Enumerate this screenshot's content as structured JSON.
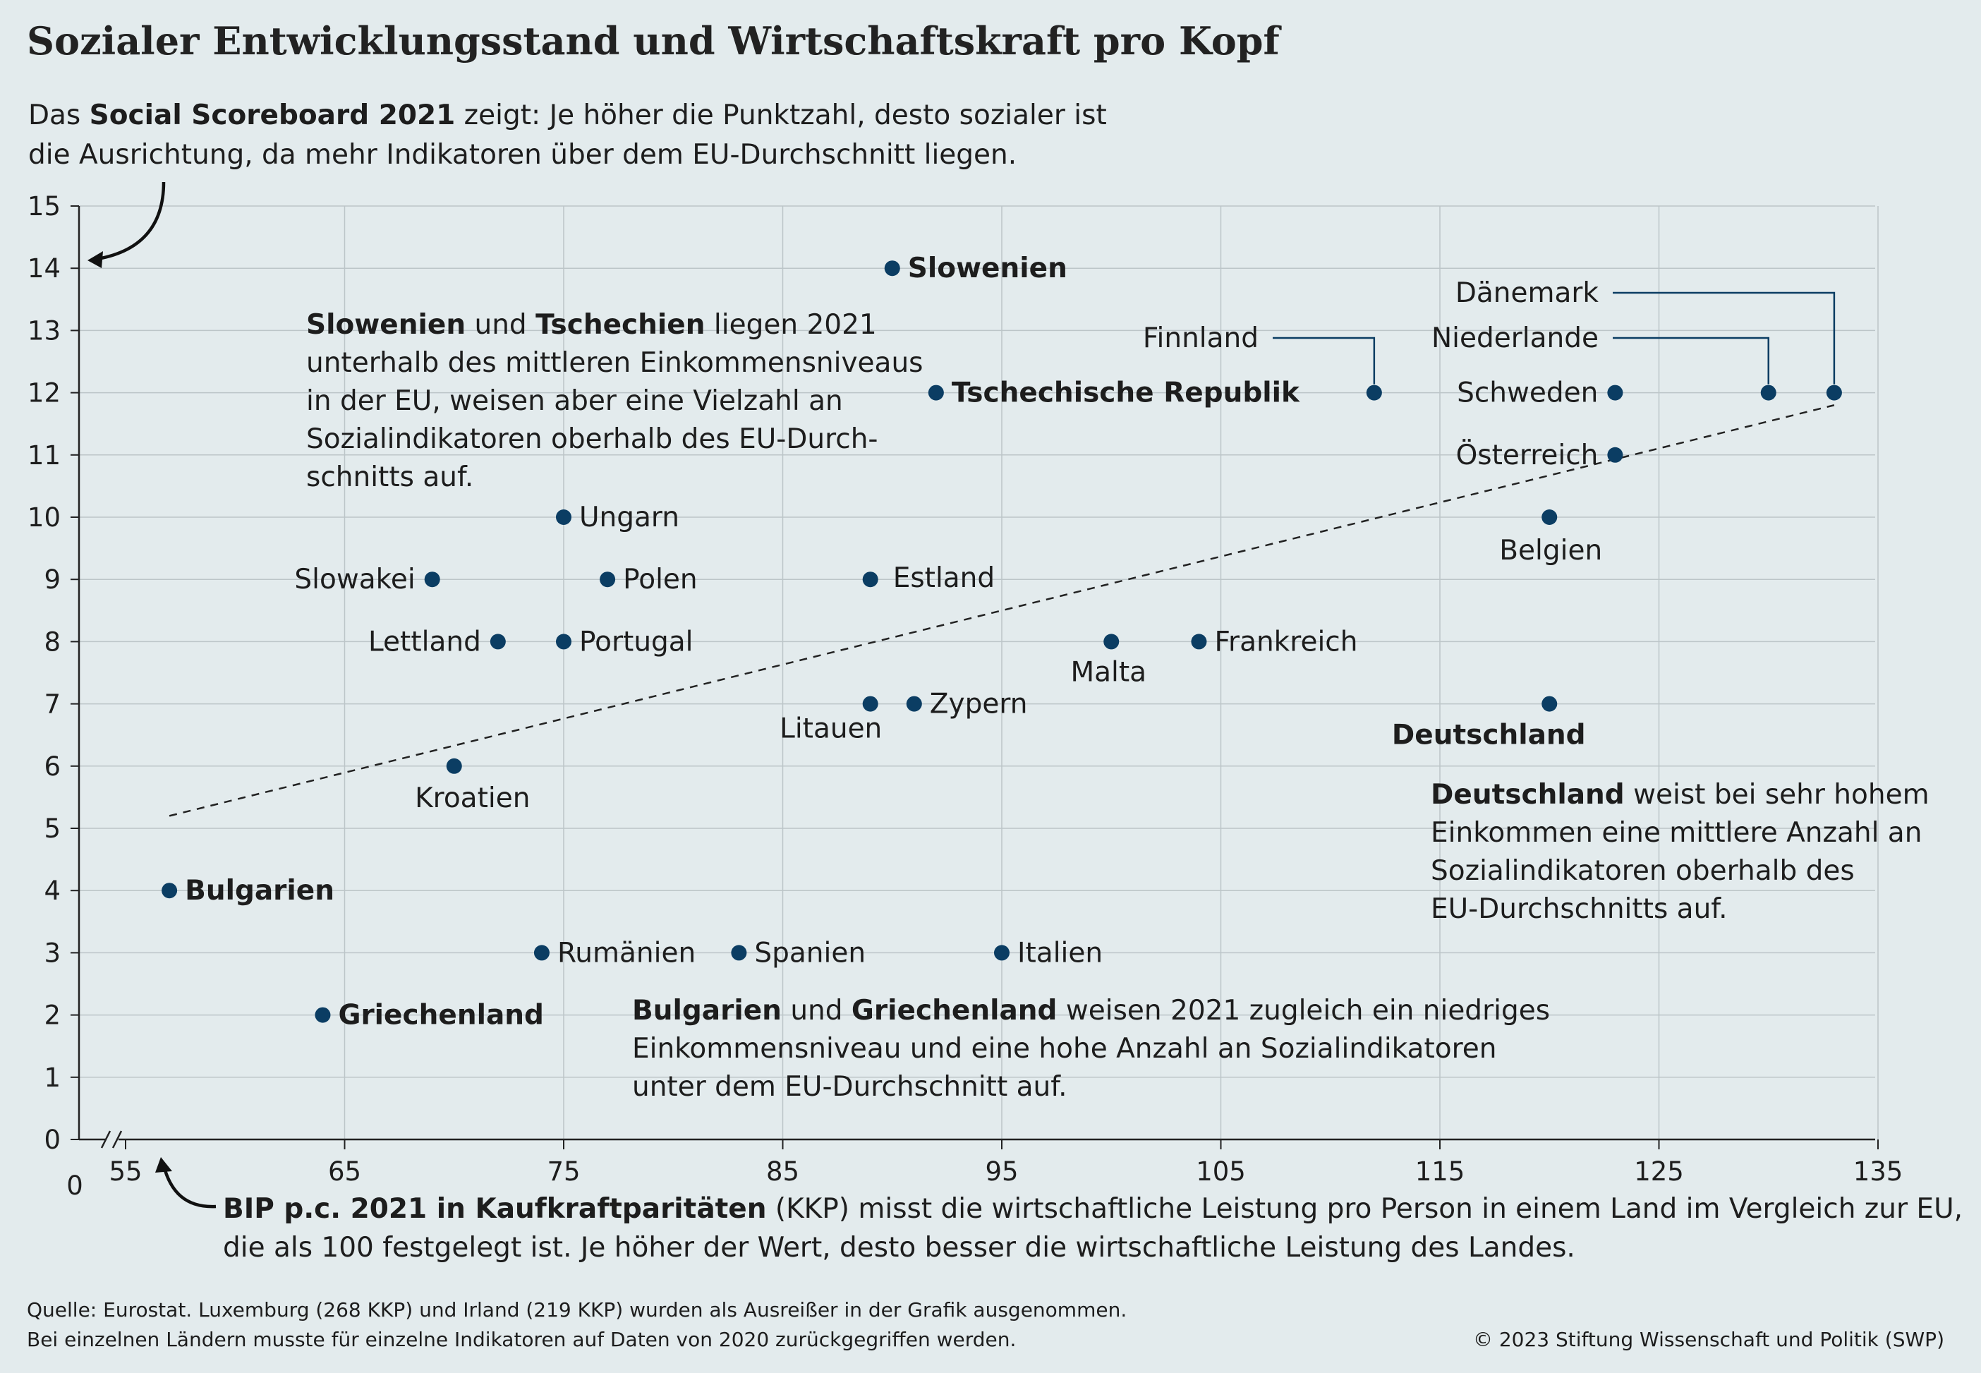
{
  "title": "Sozialer Entwicklungsstand und Wirtschaftskraft pro Kopf",
  "subtitle": {
    "line1_pre": "Das ",
    "line1_bold": "Social Scoreboard 2021",
    "line1_post": " zeigt: Je höher die Punktzahl, desto sozialer ist",
    "line2": "die Ausrichtung, da mehr Indikatoren über dem EU-Durchschnitt liegen."
  },
  "footer": {
    "line1": "Quelle: Eurostat. Luxemburg (268 KKP) und Irland (219 KKP) wurden als Ausreißer in der Grafik ausgenommen.",
    "line2": "Bei einzelnen Ländern musste für einzelne Indikatoren auf Daten von 2020 zurückgegriffen werden.",
    "copyright": "© 2023 Stiftung Wissenschaft und Politik (SWP)"
  },
  "colors": {
    "background": "#e3ebed",
    "point": "#0b3d63",
    "grid": "#bcc5c8",
    "text": "#1d1d1d"
  },
  "chart_data": {
    "type": "scatter",
    "xlim": [
      53,
      135
    ],
    "ylim": [
      0,
      15
    ],
    "x_ticks": [
      55,
      65,
      75,
      85,
      95,
      105,
      115,
      125,
      135
    ],
    "x_zero_label": "0",
    "y_ticks": [
      0,
      1,
      2,
      3,
      4,
      5,
      6,
      7,
      8,
      9,
      10,
      11,
      12,
      13,
      14,
      15
    ],
    "grid": true,
    "trendline": {
      "from": [
        57,
        5.2
      ],
      "to": [
        133,
        11.8
      ],
      "style": "dashed"
    },
    "points": [
      {
        "label": "Slowenien",
        "x": 90,
        "y": 14,
        "bold": true
      },
      {
        "label": "Tschechische Republik",
        "x": 92,
        "y": 12,
        "bold": true
      },
      {
        "label": "Finnland",
        "x": 112,
        "y": 12
      },
      {
        "label": "Dänemark",
        "x": 133,
        "y": 12
      },
      {
        "label": "Niederlande",
        "x": 130,
        "y": 12
      },
      {
        "label": "Schweden",
        "x": 123,
        "y": 12
      },
      {
        "label": "Österreich",
        "x": 123,
        "y": 11
      },
      {
        "label": "Belgien",
        "x": 120,
        "y": 10
      },
      {
        "label": "Ungarn",
        "x": 75,
        "y": 10
      },
      {
        "label": "Slowakei",
        "x": 69,
        "y": 9
      },
      {
        "label": "Polen",
        "x": 77,
        "y": 9
      },
      {
        "label": "Estland",
        "x": 89,
        "y": 9
      },
      {
        "label": "Lettland",
        "x": 72,
        "y": 8
      },
      {
        "label": "Portugal",
        "x": 75,
        "y": 8
      },
      {
        "label": "Malta",
        "x": 100,
        "y": 8
      },
      {
        "label": "Frankreich",
        "x": 104,
        "y": 8
      },
      {
        "label": "Litauen",
        "x": 89,
        "y": 7
      },
      {
        "label": "Zypern",
        "x": 91,
        "y": 7
      },
      {
        "label": "Deutschland",
        "x": 120,
        "y": 7,
        "bold": true
      },
      {
        "label": "Kroatien",
        "x": 70,
        "y": 6
      },
      {
        "label": "Bulgarien",
        "x": 57,
        "y": 4,
        "bold": true
      },
      {
        "label": "Rumänien",
        "x": 74,
        "y": 3
      },
      {
        "label": "Spanien",
        "x": 83,
        "y": 3
      },
      {
        "label": "Italien",
        "x": 95,
        "y": 3
      },
      {
        "label": "Griechenland",
        "x": 64,
        "y": 2,
        "bold": true
      }
    ]
  },
  "annotations": {
    "slo_cz": {
      "lines": [
        {
          "b1": "Slowenien",
          "t1": " und ",
          "b2": "Tschechien",
          "t2": " liegen 2021"
        },
        {
          "t1": "unterhalb des mittleren Einkommensniveaus"
        },
        {
          "t1": "in der EU, weisen aber eine Vielzahl an"
        },
        {
          "t1": "Sozialindikatoren oberhalb des EU-Durch-"
        },
        {
          "t1": "schnitts auf."
        }
      ]
    },
    "de": {
      "lines": [
        {
          "b1": "Deutschland",
          "t1": " weist bei sehr hohem"
        },
        {
          "t1": "Einkommen eine mittlere Anzahl an"
        },
        {
          "t1": "Sozialindikatoren oberhalb des"
        },
        {
          "t1": "EU-Durchschnitts auf."
        }
      ]
    },
    "bg_gr": {
      "lines": [
        {
          "b1": "Bulgarien",
          "t1": " und ",
          "b2": "Griechenland",
          "t2": " weisen 2021 zugleich ein niedriges"
        },
        {
          "t1": "Einkommensniveau und eine hohe Anzahl an Sozialindikatoren"
        },
        {
          "t1": "unter dem EU-Durchschnitt auf."
        }
      ]
    },
    "x_axis": {
      "lines": [
        {
          "b1": "BIP p.c. 2021 in Kaufkraftparitäten",
          "t1": " (KKP) misst die wirtschaftliche Leistung pro Person in einem Land im Vergleich zur EU,"
        },
        {
          "t1": "die als 100 festgelegt ist. Je höher der Wert, desto besser die wirtschaftliche Leistung des Landes."
        }
      ]
    }
  }
}
